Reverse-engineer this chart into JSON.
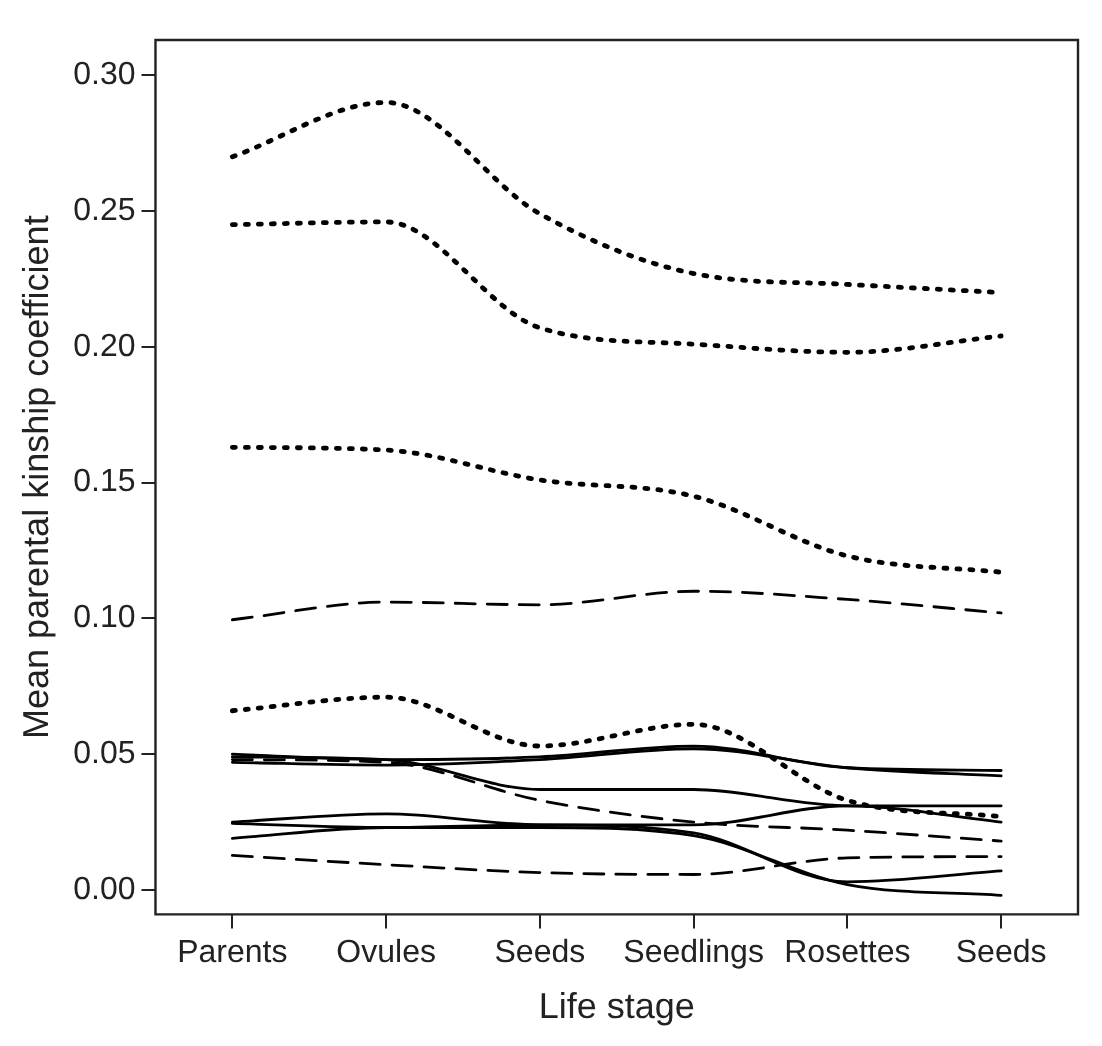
{
  "chart_data": {
    "type": "line",
    "xlabel": "Life stage",
    "ylabel": "Mean parental kinship coefficient",
    "categories": [
      "Parents",
      "Ovules",
      "Seeds",
      "Seedlings",
      "Rosettes",
      "Seeds"
    ],
    "ylim": [
      -0.009,
      0.313
    ],
    "yticks": [
      {
        "value": 0,
        "label": "0.00"
      },
      {
        "value": 0.05,
        "label": "0.05"
      },
      {
        "value": 0.1,
        "label": "0.10"
      },
      {
        "value": 0.15,
        "label": "0.15"
      },
      {
        "value": 0.2,
        "label": "0.20"
      },
      {
        "value": 0.25,
        "label": "0.25"
      },
      {
        "value": 0.3,
        "label": "0.30"
      }
    ],
    "grid": false,
    "legend": false,
    "marker": "none",
    "series": [
      {
        "color": "#000000",
        "line_style": "dotted",
        "values": [
          0.27,
          0.29,
          0.249,
          0.227,
          0.223,
          0.22
        ]
      },
      {
        "color": "#000000",
        "line_style": "dotted",
        "values": [
          0.245,
          0.246,
          0.207,
          0.201,
          0.198,
          0.204
        ]
      },
      {
        "color": "#000000",
        "line_style": "dotted",
        "values": [
          0.163,
          0.162,
          0.151,
          0.145,
          0.123,
          0.117
        ]
      },
      {
        "color": "#000000",
        "line_style": "dashed",
        "values": [
          0.0995,
          0.106,
          0.105,
          0.11,
          0.107,
          0.102
        ]
      },
      {
        "color": "#000000",
        "line_style": "dotted",
        "values": [
          0.066,
          0.071,
          0.053,
          0.061,
          0.033,
          0.027
        ]
      },
      {
        "color": "#000000",
        "line_style": "solid",
        "values": [
          0.05,
          0.048,
          0.049,
          0.053,
          0.045,
          0.044
        ]
      },
      {
        "color": "#000000",
        "line_style": "solid",
        "values": [
          0.047,
          0.046,
          0.048,
          0.052,
          0.045,
          0.042
        ]
      },
      {
        "color": "#000000",
        "line_style": "solid",
        "values": [
          0.049,
          0.048,
          0.037,
          0.037,
          0.031,
          0.031
        ]
      },
      {
        "color": "#000000",
        "line_style": "dashed",
        "values": [
          0.048,
          0.047,
          0.033,
          0.025,
          0.022,
          0.018
        ]
      },
      {
        "color": "#000000",
        "line_style": "dashed",
        "values": [
          0.0127,
          0.0093,
          0.0064,
          0.0057,
          0.0118,
          0.0123
        ]
      },
      {
        "color": "#000000",
        "line_style": "solid",
        "values": [
          0.025,
          0.028,
          0.024,
          0.024,
          0.031,
          0.025
        ]
      },
      {
        "color": "#000000",
        "line_style": "solid",
        "values": [
          0.0245,
          0.023,
          0.024,
          0.021,
          0.003,
          0.007
        ]
      },
      {
        "color": "#000000",
        "line_style": "solid",
        "values": [
          0.019,
          0.023,
          0.023,
          0.02,
          0.002,
          -0.002
        ]
      }
    ]
  }
}
